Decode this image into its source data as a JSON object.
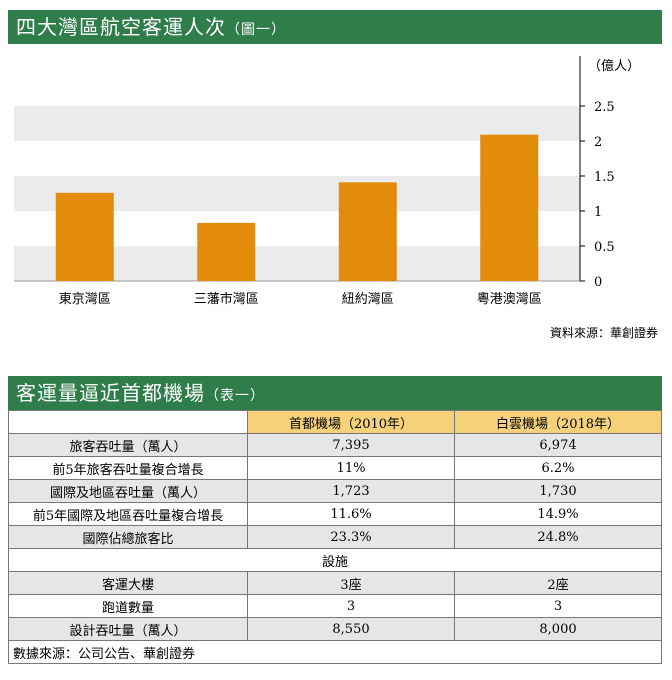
{
  "chart_banner": {
    "title": "四大灣區航空客運人次",
    "subtitle": "（圖一）"
  },
  "chart_data": {
    "type": "bar",
    "categories": [
      "東京灣區",
      "三藩市灣區",
      "紐約灣區",
      "粵港澳灣區"
    ],
    "values": [
      1.26,
      0.83,
      1.41,
      2.09
    ],
    "ylabel": "（億人）",
    "ylim": [
      0,
      2.5
    ],
    "yticks": [
      "0",
      "0.5",
      "1",
      "1.5",
      "2",
      "2.5"
    ],
    "color": "#e38b0a"
  },
  "chart_source": "資料來源：華創證券",
  "table_banner": {
    "title": "客運量逼近首都機場",
    "subtitle": "（表一）"
  },
  "table": {
    "headers": [
      "",
      "首都機場（2010年）",
      "白雲機場（2018年）"
    ],
    "rows": [
      [
        "旅客吞吐量（萬人）",
        "7,395",
        "6,974"
      ],
      [
        "前5年旅客吞吐量複合增長",
        "11%",
        "6.2%"
      ],
      [
        "國際及地區吞吐量（萬人）",
        "1,723",
        "1,730"
      ],
      [
        "前5年國際及地區吞吐量複合增長",
        "11.6%",
        "14.9%"
      ],
      [
        "國際佔總旅客比",
        "23.3%",
        "24.8%"
      ]
    ],
    "section": "設施",
    "rows2": [
      [
        "客運大樓",
        "3座",
        "2座"
      ],
      [
        "跑道數量",
        "3",
        "3"
      ],
      [
        "設計吞吐量（萬人）",
        "8,550",
        "8,000"
      ]
    ],
    "source": "數據來源：公司公告、華創證券"
  }
}
